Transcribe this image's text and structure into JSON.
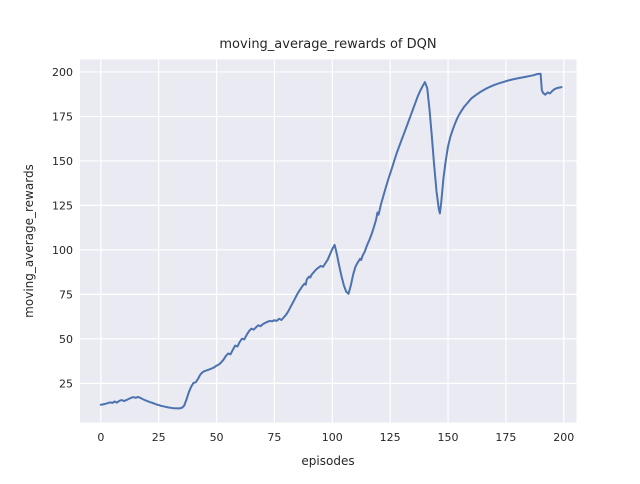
{
  "chart_data": {
    "type": "line",
    "title": "moving_average_rewards of DQN",
    "xlabel": "episodes",
    "ylabel": "moving_average_rewards",
    "x_ticks": [
      0,
      25,
      50,
      75,
      100,
      125,
      150,
      175,
      200
    ],
    "y_ticks": [
      25,
      50,
      75,
      100,
      125,
      150,
      175,
      200
    ],
    "xlim": [
      -9,
      205.5
    ],
    "ylim": [
      3,
      207
    ],
    "grid": true,
    "legend": false,
    "style": {
      "figure_background": "#ffffff",
      "axes_background": "#eaeaf2",
      "grid_color": "#ffffff",
      "line_color": "#4c72b0",
      "text_color": "#262626"
    },
    "series": [
      {
        "name": "moving_average_rewards",
        "points": [
          [
            0,
            13
          ],
          [
            1,
            13.2
          ],
          [
            2,
            13.5
          ],
          [
            3,
            13.9
          ],
          [
            4,
            14.3
          ],
          [
            5,
            14
          ],
          [
            6,
            14.8
          ],
          [
            7,
            14.2
          ],
          [
            8,
            15.2
          ],
          [
            9,
            15.6
          ],
          [
            10,
            15
          ],
          [
            11,
            15.6
          ],
          [
            12,
            16.2
          ],
          [
            13,
            16.8
          ],
          [
            14,
            17.3
          ],
          [
            15,
            16.9
          ],
          [
            16,
            17.4
          ],
          [
            17,
            16.9
          ],
          [
            18,
            16.2
          ],
          [
            19,
            15.6
          ],
          [
            20,
            15.1
          ],
          [
            21,
            14.6
          ],
          [
            22,
            14.1
          ],
          [
            23,
            13.7
          ],
          [
            24,
            13.2
          ],
          [
            25,
            12.8
          ],
          [
            26,
            12.4
          ],
          [
            27,
            12.1
          ],
          [
            28,
            11.8
          ],
          [
            29,
            11.5
          ],
          [
            30,
            11.3
          ],
          [
            31,
            11.1
          ],
          [
            32,
            11
          ],
          [
            33,
            10.9
          ],
          [
            34,
            10.9
          ],
          [
            35,
            11.2
          ],
          [
            36,
            12.5
          ],
          [
            37,
            16
          ],
          [
            38,
            20
          ],
          [
            39,
            23
          ],
          [
            40,
            25.2
          ],
          [
            41,
            25.6
          ],
          [
            42,
            27.5
          ],
          [
            43,
            30
          ],
          [
            44,
            31.3
          ],
          [
            45,
            32
          ],
          [
            46,
            32.4
          ],
          [
            47,
            32.9
          ],
          [
            48,
            33.4
          ],
          [
            49,
            34
          ],
          [
            50,
            35
          ],
          [
            51,
            35.6
          ],
          [
            52,
            36.8
          ],
          [
            53,
            38.3
          ],
          [
            54,
            40.3
          ],
          [
            55,
            41.8
          ],
          [
            56,
            41.3
          ],
          [
            57,
            43.8
          ],
          [
            58,
            46.2
          ],
          [
            59,
            45.7
          ],
          [
            60,
            48.3
          ],
          [
            61,
            50.1
          ],
          [
            62,
            49.7
          ],
          [
            63,
            52.3
          ],
          [
            64,
            54.3
          ],
          [
            65,
            55.7
          ],
          [
            66,
            55.2
          ],
          [
            67,
            56.4
          ],
          [
            68,
            57.6
          ],
          [
            69,
            57.1
          ],
          [
            70,
            58.3
          ],
          [
            71,
            59
          ],
          [
            72,
            59.6
          ],
          [
            73,
            60.1
          ],
          [
            74,
            59.9
          ],
          [
            75,
            60.5
          ],
          [
            76,
            60.1
          ],
          [
            77,
            61.3
          ],
          [
            78,
            60.6
          ],
          [
            79,
            62
          ],
          [
            80,
            63.5
          ],
          [
            81,
            65.5
          ],
          [
            82,
            68
          ],
          [
            83,
            70.5
          ],
          [
            84,
            73
          ],
          [
            85,
            75.5
          ],
          [
            86,
            77.5
          ],
          [
            87,
            79.5
          ],
          [
            88,
            81
          ],
          [
            88.5,
            80.5
          ],
          [
            89,
            83.5
          ],
          [
            90,
            85
          ],
          [
            90.5,
            84.5
          ],
          [
            91,
            86
          ],
          [
            92,
            87.5
          ],
          [
            93,
            89
          ],
          [
            94,
            90
          ],
          [
            95,
            91
          ],
          [
            96,
            90.5
          ],
          [
            97,
            92.5
          ],
          [
            98,
            94.5
          ],
          [
            99,
            97.5
          ],
          [
            100,
            100.5
          ],
          [
            101,
            102.8
          ],
          [
            102,
            97.5
          ],
          [
            103,
            91
          ],
          [
            104,
            85
          ],
          [
            105,
            80
          ],
          [
            106,
            76.5
          ],
          [
            107,
            75.3
          ],
          [
            108,
            80
          ],
          [
            109,
            86
          ],
          [
            110,
            90.5
          ],
          [
            111,
            93
          ],
          [
            112,
            95
          ],
          [
            112.5,
            94.3
          ],
          [
            113,
            96.5
          ],
          [
            114,
            99
          ],
          [
            115,
            102.5
          ],
          [
            116,
            105.5
          ],
          [
            117,
            109
          ],
          [
            118,
            113
          ],
          [
            119,
            117.5
          ],
          [
            119.5,
            121
          ],
          [
            120,
            119.8
          ],
          [
            121,
            125.5
          ],
          [
            122,
            130
          ],
          [
            123,
            134.5
          ],
          [
            124,
            139
          ],
          [
            125,
            143
          ],
          [
            126,
            147
          ],
          [
            127,
            151
          ],
          [
            128,
            155
          ],
          [
            129,
            158.5
          ],
          [
            130,
            162
          ],
          [
            131,
            165.5
          ],
          [
            132,
            169
          ],
          [
            133,
            172.5
          ],
          [
            134,
            176
          ],
          [
            135,
            179.5
          ],
          [
            136,
            183
          ],
          [
            137,
            186.5
          ],
          [
            138,
            189.5
          ],
          [
            139,
            192
          ],
          [
            140,
            194.3
          ],
          [
            141,
            191
          ],
          [
            142,
            179
          ],
          [
            143,
            164
          ],
          [
            144,
            148
          ],
          [
            145,
            133
          ],
          [
            146,
            123
          ],
          [
            146.5,
            120.5
          ],
          [
            147,
            126
          ],
          [
            148,
            140
          ],
          [
            149,
            150
          ],
          [
            150,
            158
          ],
          [
            151,
            163.5
          ],
          [
            152,
            167.5
          ],
          [
            153,
            171
          ],
          [
            154,
            174
          ],
          [
            155,
            176.5
          ],
          [
            156,
            178.5
          ],
          [
            157,
            180.5
          ],
          [
            158,
            182
          ],
          [
            159,
            183.5
          ],
          [
            160,
            185
          ],
          [
            162,
            187
          ],
          [
            164,
            188.8
          ],
          [
            166,
            190.3
          ],
          [
            168,
            191.6
          ],
          [
            170,
            192.7
          ],
          [
            172,
            193.6
          ],
          [
            174,
            194.4
          ],
          [
            176,
            195.2
          ],
          [
            178,
            195.8
          ],
          [
            180,
            196.4
          ],
          [
            182,
            196.9
          ],
          [
            184,
            197.4
          ],
          [
            186,
            197.9
          ],
          [
            187,
            198.2
          ],
          [
            188,
            198.6
          ],
          [
            189,
            198.9
          ],
          [
            190,
            199
          ],
          [
            190.5,
            190
          ],
          [
            191,
            188.3
          ],
          [
            192,
            187.2
          ],
          [
            193,
            188.5
          ],
          [
            194,
            187.9
          ],
          [
            195,
            189.3
          ],
          [
            196,
            190.3
          ],
          [
            197,
            190.9
          ],
          [
            198,
            191.2
          ],
          [
            199,
            191.5
          ]
        ]
      }
    ]
  }
}
